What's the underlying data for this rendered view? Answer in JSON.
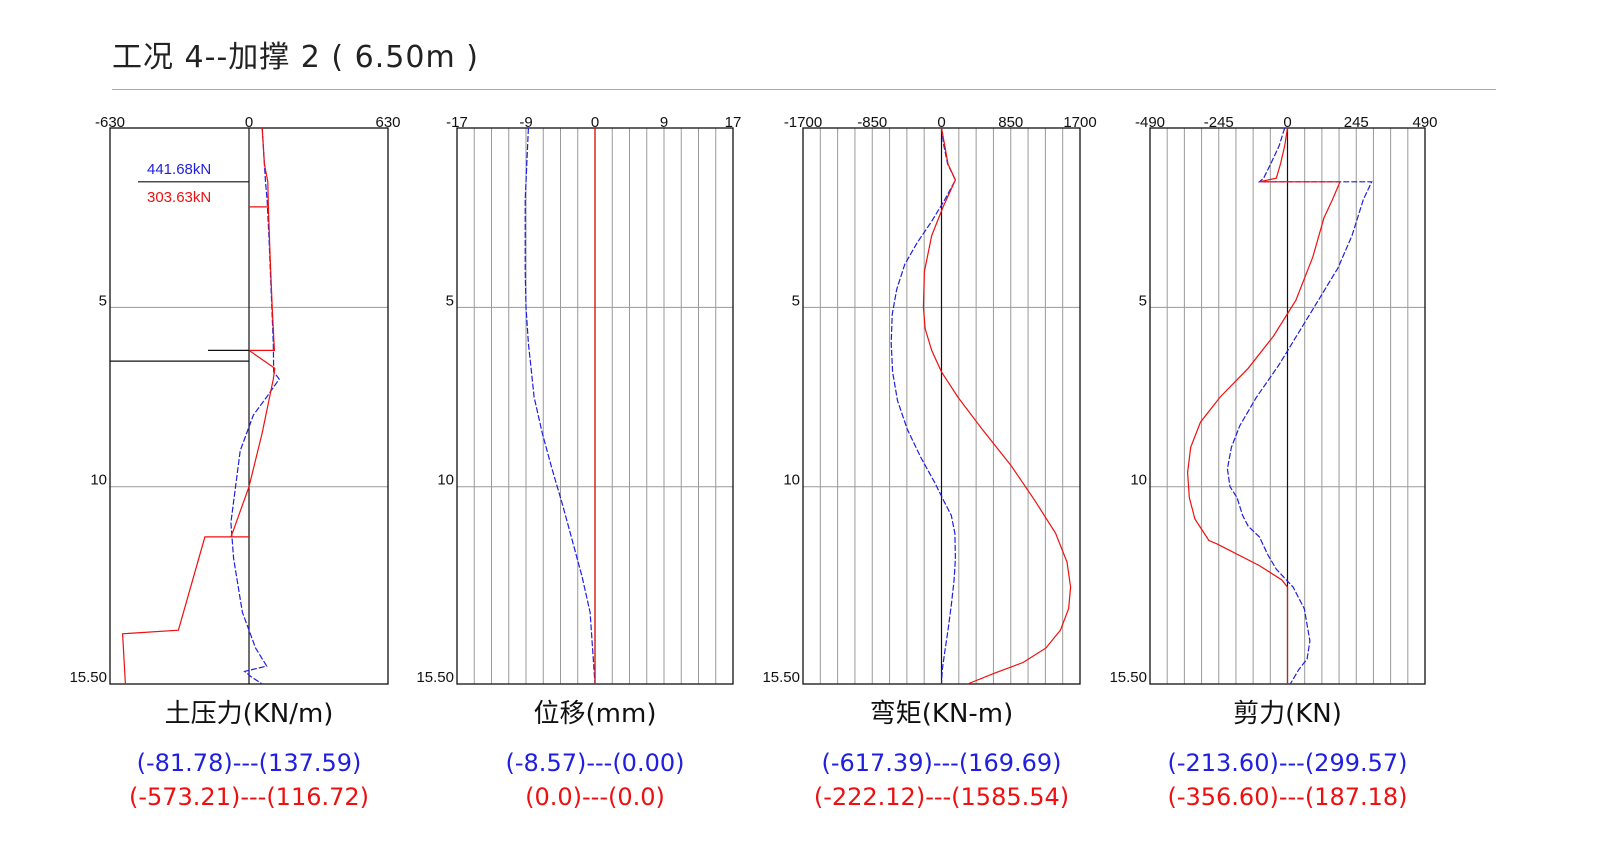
{
  "header": {
    "title": "工况 4--加撑 2 ( 6.50m )"
  },
  "colors": {
    "blue": "#1f1fe0",
    "red": "#ee1010",
    "grid": "#9a9a9a",
    "frame": "#111111"
  },
  "chart_data": [
    {
      "type": "line",
      "title": "土压力(KN/m)",
      "xlim": [
        -630,
        630
      ],
      "xticks": [
        "-630",
        "0",
        "630"
      ],
      "ylim": [
        0,
        15.5
      ],
      "yticks": [
        "5",
        "10",
        "15.50"
      ],
      "grid": false,
      "range_blue": "(-81.78)---(137.59)",
      "range_red": "(-573.21)---(116.72)",
      "annotations": {
        "blue": "441.68kN",
        "red": "303.63kN"
      },
      "series": [
        {
          "color": "blue",
          "style": "dashed",
          "x": [
            60,
            70,
            75,
            82,
            90,
            100,
            110,
            112,
            137,
            80,
            20,
            -40,
            -82,
            -70,
            -30,
            0,
            30,
            80,
            -20,
            10,
            60
          ],
          "y": [
            0,
            1,
            1.5,
            2.0,
            3.0,
            4.5,
            6.0,
            6.8,
            7.0,
            7.5,
            8.0,
            9.0,
            11.0,
            12.0,
            13.5,
            14.0,
            14.5,
            15.0,
            15.15,
            15.3,
            15.5
          ]
        },
        {
          "color": "red",
          "style": "solid",
          "x": [
            60,
            70,
            85,
            88,
            0,
            88,
            95,
            105,
            115,
            0,
            117,
            110,
            60,
            0,
            -70,
            -82,
            0,
            -200,
            -320,
            -573,
            -560
          ],
          "y": [
            0,
            1,
            1.5,
            2.2,
            2.2,
            2.2,
            3.5,
            5.0,
            6.2,
            6.2,
            6.7,
            7.0,
            8.5,
            10.0,
            11.2,
            11.4,
            11.4,
            11.4,
            14.0,
            14.1,
            15.5
          ]
        }
      ]
    },
    {
      "type": "line",
      "title": "位移(mm)",
      "xlim": [
        -17,
        17
      ],
      "xticks": [
        "-17",
        "-9",
        "0",
        "9",
        "17"
      ],
      "ylim": [
        0,
        15.5
      ],
      "yticks": [
        "5",
        "10",
        "15.50"
      ],
      "grid": true,
      "range_blue": "(-8.57)---(0.00)",
      "range_red": "(0.0)---(0.0)",
      "series": [
        {
          "color": "blue",
          "style": "dashed",
          "x": [
            -8.2,
            -8.4,
            -8.6,
            -8.6,
            -8.5,
            -8.2,
            -7.5,
            -6.5,
            -5.3,
            -4.0,
            -2.8,
            -1.6,
            -0.6,
            0.0
          ],
          "y": [
            0,
            1,
            2,
            4,
            5,
            6,
            7.5,
            8.5,
            9.5,
            10.5,
            11.5,
            12.5,
            13.5,
            15.5
          ]
        },
        {
          "color": "red",
          "style": "solid",
          "x": [
            0,
            0
          ],
          "y": [
            0,
            15.5
          ]
        }
      ]
    },
    {
      "type": "line",
      "title": "弯矩(KN-m)",
      "xlim": [
        -1700,
        1700
      ],
      "xticks": [
        "-1700",
        "-850",
        "0",
        "850",
        "1700"
      ],
      "ylim": [
        0,
        15.5
      ],
      "yticks": [
        "5",
        "10",
        "15.50"
      ],
      "grid": true,
      "range_blue": "(-617.39)---(169.69)",
      "range_red": "(-222.12)---(1585.54)",
      "series": [
        {
          "color": "blue",
          "style": "dashed",
          "x": [
            0,
            30,
            75,
            170,
            40,
            -120,
            -300,
            -450,
            -550,
            -605,
            -617,
            -600,
            -540,
            -420,
            -250,
            -80,
            30,
            120,
            165,
            170,
            155,
            120,
            80,
            40,
            10,
            0
          ],
          "y": [
            0,
            0.5,
            1.0,
            1.45,
            2.0,
            2.6,
            3.2,
            3.8,
            4.5,
            5.2,
            6.0,
            6.8,
            7.6,
            8.4,
            9.2,
            9.9,
            10.4,
            10.8,
            11.3,
            12.0,
            12.6,
            13.3,
            14.0,
            14.6,
            15.1,
            15.5
          ]
        },
        {
          "color": "red",
          "style": "solid",
          "x": [
            0,
            40,
            80,
            170,
            20,
            -120,
            -210,
            -222,
            -200,
            -120,
            0,
            200,
            500,
            850,
            1150,
            1400,
            1540,
            1585,
            1560,
            1460,
            1280,
            1000,
            650,
            320
          ],
          "y": [
            0,
            0.5,
            1.0,
            1.45,
            2.2,
            3.0,
            4.0,
            5.0,
            5.6,
            6.2,
            6.8,
            7.5,
            8.4,
            9.4,
            10.4,
            11.3,
            12.1,
            12.8,
            13.4,
            14.0,
            14.5,
            14.9,
            15.2,
            15.5
          ]
        }
      ]
    },
    {
      "type": "line",
      "title": "剪力(KN)",
      "xlim": [
        -490,
        490
      ],
      "xticks": [
        "-490",
        "-245",
        "0",
        "245",
        "490"
      ],
      "ylim": [
        0,
        15.5
      ],
      "yticks": [
        "5",
        "10",
        "15.50"
      ],
      "grid": true,
      "range_blue": "(-213.60)---(299.57)",
      "range_red": "(-356.60)---(187.18)",
      "series": [
        {
          "color": "blue",
          "style": "dashed",
          "x": [
            -10,
            -30,
            -60,
            -85,
            -100,
            300,
            270,
            230,
            180,
            110,
            40,
            -30,
            -110,
            -170,
            -200,
            -214,
            -205,
            -180,
            -160,
            -140,
            -100,
            -70,
            -40,
            20,
            60,
            80,
            70,
            40,
            10
          ],
          "y": [
            0,
            0.5,
            1.0,
            1.4,
            1.5,
            1.5,
            2.0,
            3.0,
            3.9,
            4.8,
            5.7,
            6.6,
            7.5,
            8.3,
            8.9,
            9.5,
            10.0,
            10.3,
            10.8,
            11.1,
            11.4,
            11.9,
            12.3,
            12.8,
            13.4,
            14.3,
            14.8,
            15.1,
            15.5
          ]
        },
        {
          "color": "red",
          "style": "solid",
          "x": [
            0,
            -10,
            -25,
            -40,
            -100,
            187,
            160,
            130,
            90,
            30,
            -50,
            -140,
            -240,
            -310,
            -345,
            -356,
            -350,
            -330,
            -280,
            -250,
            -100,
            -20,
            0,
            0
          ],
          "y": [
            0,
            0.5,
            1.0,
            1.4,
            1.5,
            1.5,
            2.0,
            2.5,
            3.6,
            4.8,
            5.8,
            6.7,
            7.5,
            8.2,
            8.9,
            9.6,
            10.3,
            10.9,
            11.5,
            11.6,
            12.2,
            12.6,
            12.8,
            15.5
          ]
        }
      ]
    }
  ]
}
